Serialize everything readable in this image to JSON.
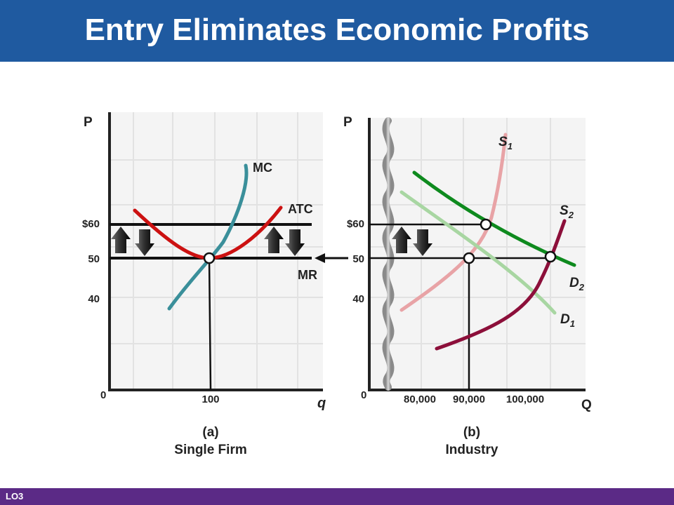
{
  "title": "Entry Eliminates Economic Profits",
  "footer": "LO3",
  "panel_a": {
    "p_label": "P",
    "q_label": "q",
    "price_ticks": [
      "$60",
      "50",
      "40"
    ],
    "zero": "0",
    "q_tick": "100",
    "curves": {
      "mc": "MC",
      "atc": "ATC",
      "mr": "MR"
    },
    "caption_letter": "(a)",
    "caption_name": "Single Firm"
  },
  "panel_b": {
    "p_label": "P",
    "q_label": "Q",
    "price_ticks": [
      "$60",
      "50",
      "40"
    ],
    "zero": "0",
    "q_ticks": [
      "80,000",
      "90,000",
      "100,000"
    ],
    "curves": {
      "s1": "S",
      "s1_sub": "1",
      "s2": "S",
      "s2_sub": "2",
      "d1": "D",
      "d1_sub": "1",
      "d2": "D",
      "d2_sub": "2"
    },
    "caption_letter": "(b)",
    "caption_name": "Industry"
  },
  "colors": {
    "title_bar": "#1f5aa0",
    "footer_bar": "#5b2a86",
    "mc": "#3a8f9a",
    "atc": "#cc1111",
    "s1": "#e8a3a6",
    "s2": "#8c0f3a",
    "d1": "#a8d6a2",
    "d2": "#0e8a1e"
  }
}
